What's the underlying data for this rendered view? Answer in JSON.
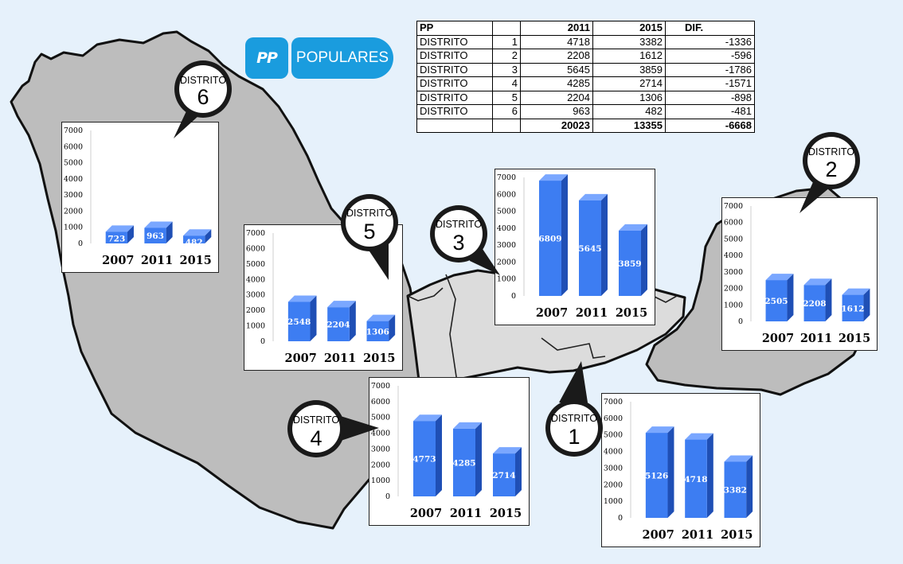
{
  "logo": {
    "mark_text": "PP",
    "word_text": "POPULARES",
    "color": "#1a9cde"
  },
  "summary_table": {
    "headers": [
      "PP",
      "",
      "2011",
      "2015",
      "DIF."
    ],
    "rows": [
      {
        "label": "DISTRITO",
        "num": "1",
        "y2011": "4718",
        "y2015": "3382",
        "dif": "-1336"
      },
      {
        "label": "DISTRITO",
        "num": "2",
        "y2011": "2208",
        "y2015": "1612",
        "dif": "-596"
      },
      {
        "label": "DISTRITO",
        "num": "3",
        "y2011": "5645",
        "y2015": "3859",
        "dif": "-1786"
      },
      {
        "label": "DISTRITO",
        "num": "4",
        "y2011": "4285",
        "y2015": "2714",
        "dif": "-1571"
      },
      {
        "label": "DISTRITO",
        "num": "5",
        "y2011": "2204",
        "y2015": "1306",
        "dif": "-898"
      },
      {
        "label": "DISTRITO",
        "num": "6",
        "y2011": "963",
        "y2015": "482",
        "dif": "-481"
      }
    ],
    "totals": {
      "y2011": "20023",
      "y2015": "13355",
      "dif": "-6668"
    }
  },
  "pins": [
    {
      "label": "DISTRITO",
      "num": "1"
    },
    {
      "label": "DISTRITO",
      "num": "2"
    },
    {
      "label": "DISTRITO",
      "num": "3"
    },
    {
      "label": "DISTRITO",
      "num": "4"
    },
    {
      "label": "DISTRITO",
      "num": "5"
    },
    {
      "label": "DISTRITO",
      "num": "6"
    }
  ],
  "chart_data": [
    {
      "type": "bar",
      "district": "6",
      "categories": [
        "2007",
        "2011",
        "2015"
      ],
      "values": [
        723,
        963,
        482
      ],
      "ylim": [
        0,
        7000
      ],
      "yticks": [
        0,
        1000,
        2000,
        3000,
        4000,
        5000,
        6000,
        7000
      ],
      "bar_color": "#3d7df2",
      "grid": false,
      "title": "",
      "xlabel": "",
      "ylabel": ""
    },
    {
      "type": "bar",
      "district": "5",
      "categories": [
        "2007",
        "2011",
        "2015"
      ],
      "values": [
        2548,
        2204,
        1306
      ],
      "ylim": [
        0,
        7000
      ],
      "yticks": [
        0,
        1000,
        2000,
        3000,
        4000,
        5000,
        6000,
        7000
      ],
      "bar_color": "#3d7df2",
      "grid": false,
      "title": "",
      "xlabel": "",
      "ylabel": ""
    },
    {
      "type": "bar",
      "district": "3",
      "categories": [
        "2007",
        "2011",
        "2015"
      ],
      "values": [
        6809,
        5645,
        3859
      ],
      "ylim": [
        0,
        7000
      ],
      "yticks": [
        0,
        1000,
        2000,
        3000,
        4000,
        5000,
        6000,
        7000
      ],
      "bar_color": "#3d7df2",
      "grid": false,
      "title": "",
      "xlabel": "",
      "ylabel": ""
    },
    {
      "type": "bar",
      "district": "2",
      "categories": [
        "2007",
        "2011",
        "2015"
      ],
      "values": [
        2505,
        2208,
        1612
      ],
      "ylim": [
        0,
        7000
      ],
      "yticks": [
        0,
        1000,
        2000,
        3000,
        4000,
        5000,
        6000,
        7000
      ],
      "bar_color": "#3d7df2",
      "grid": false,
      "title": "",
      "xlabel": "",
      "ylabel": ""
    },
    {
      "type": "bar",
      "district": "4",
      "categories": [
        "2007",
        "2011",
        "2015"
      ],
      "values": [
        4773,
        4285,
        2714
      ],
      "ylim": [
        0,
        7000
      ],
      "yticks": [
        0,
        1000,
        2000,
        3000,
        4000,
        5000,
        6000,
        7000
      ],
      "bar_color": "#3d7df2",
      "grid": false,
      "title": "",
      "xlabel": "",
      "ylabel": ""
    },
    {
      "type": "bar",
      "district": "1",
      "categories": [
        "2007",
        "2011",
        "2015"
      ],
      "values": [
        5126,
        4718,
        3382
      ],
      "ylim": [
        0,
        7000
      ],
      "yticks": [
        0,
        1000,
        2000,
        3000,
        4000,
        5000,
        6000,
        7000
      ],
      "bar_color": "#3d7df2",
      "grid": false,
      "title": "",
      "xlabel": "",
      "ylabel": ""
    }
  ]
}
